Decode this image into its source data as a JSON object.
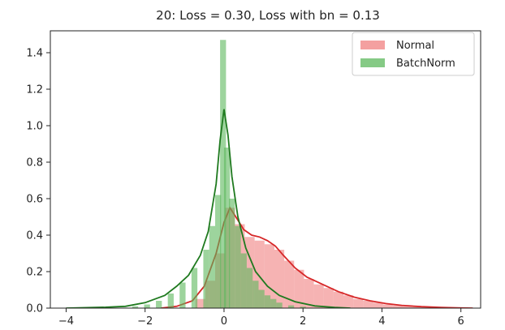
{
  "chart_data": {
    "type": "area",
    "title": "20: Loss = 0.30, Loss with bn = 0.13",
    "xlabel": "",
    "ylabel": "",
    "xlim": [
      -4.4,
      6.5
    ],
    "ylim": [
      0,
      1.52
    ],
    "xticks": [
      -4,
      -2,
      0,
      2,
      4,
      6
    ],
    "xtick_labels": [
      "−4",
      "−2",
      "0",
      "2",
      "4",
      "6"
    ],
    "yticks": [
      0.0,
      0.2,
      0.4,
      0.6,
      0.8,
      1.0,
      1.2,
      1.4
    ],
    "ytick_labels": [
      "0.0",
      "0.2",
      "0.4",
      "0.6",
      "0.8",
      "1.0",
      "1.2",
      "1.4"
    ],
    "grid": false,
    "legend_position": "top-right",
    "series": [
      {
        "name": "Normal",
        "color": "#f08080",
        "line_color": "#d62728",
        "hist_bin_width": 0.25,
        "hist_bins": [
          [
            -0.6,
            0.05
          ],
          [
            -0.35,
            0.15
          ],
          [
            -0.1,
            0.3
          ],
          [
            0.15,
            0.55
          ],
          [
            0.4,
            0.46
          ],
          [
            0.65,
            0.39
          ],
          [
            0.9,
            0.37
          ],
          [
            1.15,
            0.35
          ],
          [
            1.4,
            0.32
          ],
          [
            1.65,
            0.26
          ],
          [
            1.9,
            0.21
          ],
          [
            2.15,
            0.16
          ],
          [
            2.4,
            0.13
          ],
          [
            2.65,
            0.11
          ],
          [
            2.9,
            0.09
          ],
          [
            3.15,
            0.07
          ],
          [
            3.4,
            0.05
          ],
          [
            3.65,
            0.04
          ],
          [
            3.9,
            0.03
          ],
          [
            4.15,
            0.02
          ],
          [
            4.4,
            0.015
          ],
          [
            4.65,
            0.01
          ],
          [
            4.9,
            0.008
          ],
          [
            5.15,
            0.005
          ],
          [
            5.4,
            0.003
          ],
          [
            5.65,
            0.002
          ],
          [
            5.9,
            0.001
          ]
        ],
        "kde": [
          [
            -1.6,
            0.0
          ],
          [
            -1.2,
            0.01
          ],
          [
            -0.8,
            0.04
          ],
          [
            -0.5,
            0.12
          ],
          [
            -0.2,
            0.3
          ],
          [
            0.0,
            0.47
          ],
          [
            0.15,
            0.55
          ],
          [
            0.3,
            0.5
          ],
          [
            0.5,
            0.43
          ],
          [
            0.7,
            0.4
          ],
          [
            0.9,
            0.39
          ],
          [
            1.1,
            0.37
          ],
          [
            1.3,
            0.34
          ],
          [
            1.5,
            0.29
          ],
          [
            1.8,
            0.22
          ],
          [
            2.1,
            0.17
          ],
          [
            2.5,
            0.13
          ],
          [
            2.9,
            0.09
          ],
          [
            3.3,
            0.06
          ],
          [
            3.7,
            0.04
          ],
          [
            4.1,
            0.025
          ],
          [
            4.5,
            0.015
          ],
          [
            5.0,
            0.008
          ],
          [
            5.5,
            0.004
          ],
          [
            6.0,
            0.001
          ],
          [
            6.3,
            0.0
          ]
        ]
      },
      {
        "name": "BatchNorm",
        "color": "#5cb85c",
        "line_color": "#1f7a1f",
        "hist_bin_width": 0.15,
        "hist_bins": [
          [
            -2.25,
            0.01
          ],
          [
            -1.95,
            0.02
          ],
          [
            -1.65,
            0.04
          ],
          [
            -1.35,
            0.08
          ],
          [
            -1.05,
            0.14
          ],
          [
            -0.75,
            0.22
          ],
          [
            -0.45,
            0.32
          ],
          [
            -0.3,
            0.45
          ],
          [
            -0.15,
            0.62
          ],
          [
            -0.025,
            1.47
          ],
          [
            0.075,
            0.88
          ],
          [
            0.2,
            0.6
          ],
          [
            0.35,
            0.45
          ],
          [
            0.5,
            0.3
          ],
          [
            0.65,
            0.22
          ],
          [
            0.8,
            0.15
          ],
          [
            0.95,
            0.1
          ],
          [
            1.1,
            0.07
          ],
          [
            1.25,
            0.05
          ],
          [
            1.4,
            0.03
          ],
          [
            1.7,
            0.015
          ],
          [
            2.0,
            0.008
          ]
        ],
        "kde": [
          [
            -4.0,
            0.0
          ],
          [
            -3.0,
            0.005
          ],
          [
            -2.5,
            0.01
          ],
          [
            -2.0,
            0.03
          ],
          [
            -1.5,
            0.07
          ],
          [
            -1.2,
            0.12
          ],
          [
            -0.9,
            0.18
          ],
          [
            -0.6,
            0.29
          ],
          [
            -0.4,
            0.42
          ],
          [
            -0.2,
            0.68
          ],
          [
            -0.1,
            0.92
          ],
          [
            0.0,
            1.09
          ],
          [
            0.1,
            0.95
          ],
          [
            0.2,
            0.72
          ],
          [
            0.35,
            0.5
          ],
          [
            0.55,
            0.33
          ],
          [
            0.8,
            0.2
          ],
          [
            1.1,
            0.12
          ],
          [
            1.4,
            0.07
          ],
          [
            1.8,
            0.035
          ],
          [
            2.3,
            0.012
          ],
          [
            2.8,
            0.004
          ],
          [
            3.2,
            0.0
          ]
        ]
      }
    ]
  }
}
